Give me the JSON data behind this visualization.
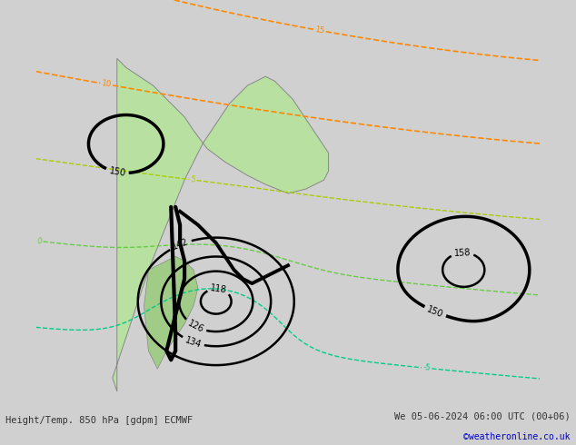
{
  "title_left": "Height/Temp. 850 hPa [gdpm] ECMWF",
  "title_right": "We 05-06-2024 06:00 UTC (00+06)",
  "credit": "©weatheronline.co.uk",
  "bg_color": "#d0d0d0",
  "land_color": "#b8e0a0",
  "land_color_dark": "#a0cc88",
  "geo_color": "#000000",
  "footer_color": "#333333",
  "credit_color": "#0000cc",
  "temp_level_colors": {
    "25": "#ff0000",
    "20": "#ff0000",
    "15": "#ff8800",
    "10": "#ff8800",
    "5": "#99bb00",
    "0": "#66cc44",
    "-5": "#00cc99",
    "-10": "#00aacc",
    "-15": "#0055ff"
  }
}
